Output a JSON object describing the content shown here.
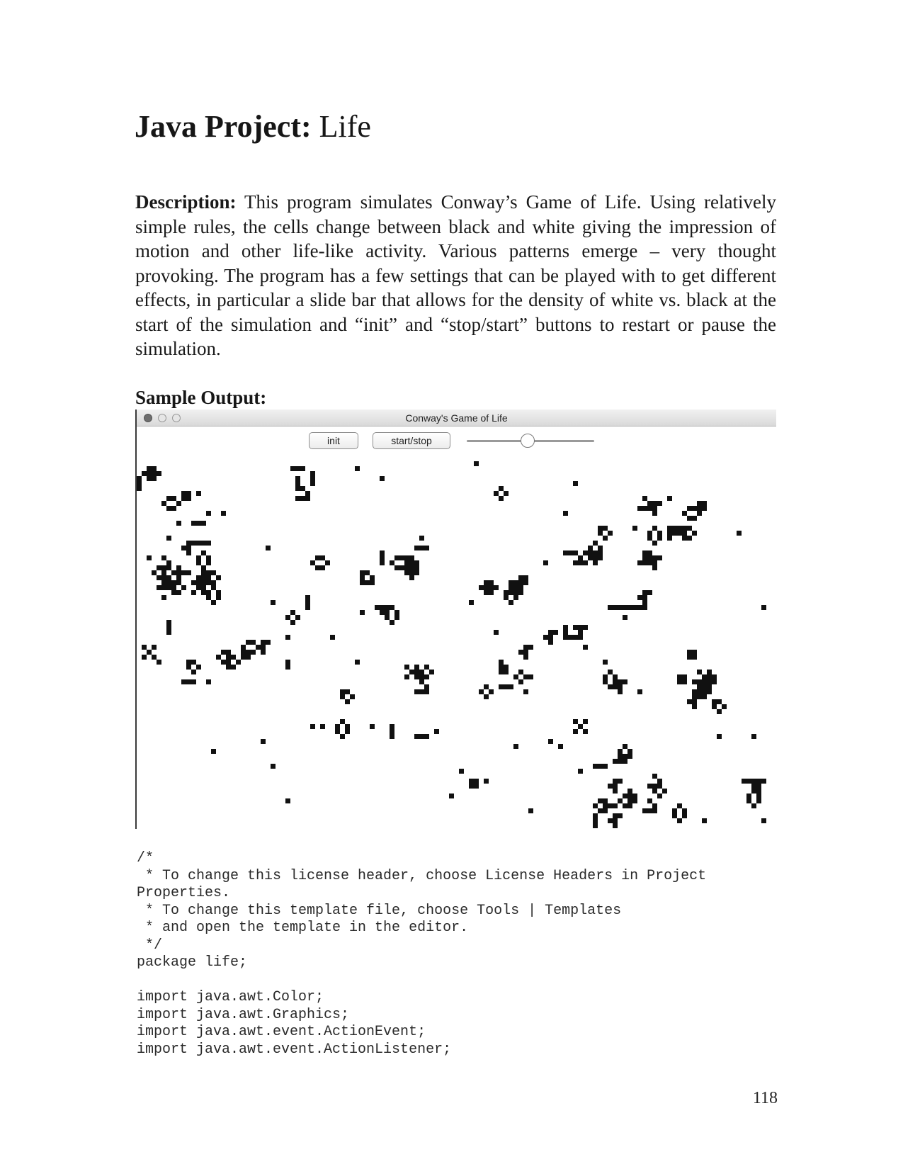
{
  "page": {
    "title_bold": "Java Project:",
    "title_rest": " Life",
    "description_label": "Description:",
    "description_text": " This program simulates Conway’s Game of Life.  Using relatively simple rules, the cells change between black and white giving the impression of motion and other life-like activity.  Various patterns emerge – very thought provoking.  The program has a few settings that can be played with to get different effects, in particular a slide bar that allows for the density of white vs. black at the start of the simulation and “init” and “stop/start” buttons to restart or pause the simulation.",
    "sample_heading": "Sample Output:",
    "page_number": "118"
  },
  "app_window": {
    "title": "Conway's Game of Life",
    "buttons": {
      "init_label": "init",
      "start_stop_label": "start/stop"
    },
    "density_slider": {
      "value": 0.48
    },
    "cell_color": "#111111",
    "background_color": "#ffffff"
  },
  "code": {
    "lines": [
      "/*",
      " * To change this license header, choose License Headers in Project",
      "Properties.",
      " * To change this template file, choose Tools | Templates",
      " * and open the template in the editor.",
      " */",
      "package life;",
      "",
      "import java.awt.Color;",
      "import java.awt.Graphics;",
      "import java.awt.event.ActionEvent;",
      "import java.awt.event.ActionListener;"
    ]
  }
}
